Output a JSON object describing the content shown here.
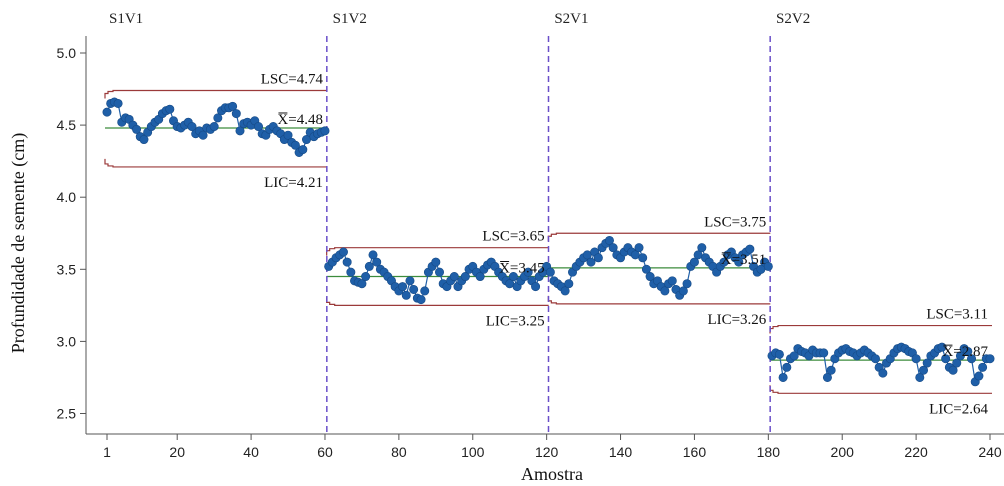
{
  "chart_data": {
    "type": "scatter",
    "xlabel": "Amostra",
    "ylabel": "Profundidade de semente (cm)",
    "xlim": [
      1,
      240
    ],
    "ylim": [
      2.35,
      5.15
    ],
    "x_ticks": [
      1,
      20,
      40,
      60,
      80,
      100,
      120,
      140,
      160,
      180,
      200,
      220,
      240
    ],
    "y_ticks": [
      2.5,
      3.0,
      3.5,
      4.0,
      4.5,
      5.0
    ],
    "y_tick_labels": [
      "2.5",
      "3.0",
      "3.5",
      "4.0",
      "4.5",
      "5.0"
    ],
    "colors": {
      "points": "#1f5fa8",
      "center_line": "#3c8c3c",
      "limits": "#9b3a3a",
      "divider": "#6a4fc9"
    },
    "stages": [
      {
        "label": "S1V1",
        "x_start": 1,
        "x_end": 60,
        "lsc": 4.74,
        "mean": 4.48,
        "lic": 4.21,
        "lsc_label": "LSC=4.74",
        "mean_label": "X=4.48",
        "lic_label": "LIC=4.21",
        "values": [
          4.59,
          4.65,
          4.66,
          4.65,
          4.52,
          4.55,
          4.54,
          4.5,
          4.47,
          4.42,
          4.4,
          4.45,
          4.49,
          4.52,
          4.54,
          4.58,
          4.6,
          4.61,
          4.53,
          4.49,
          4.48,
          4.5,
          4.52,
          4.49,
          4.44,
          4.46,
          4.43,
          4.48,
          4.47,
          4.49,
          4.55,
          4.6,
          4.62,
          4.62,
          4.63,
          4.58,
          4.46,
          4.51,
          4.52,
          4.5,
          4.53,
          4.49,
          4.44,
          4.43,
          4.47,
          4.49,
          4.46,
          4.44,
          4.4,
          4.43,
          4.38,
          4.36,
          4.31,
          4.33,
          4.4,
          4.45,
          4.42,
          4.44,
          4.45,
          4.46
        ]
      },
      {
        "label": "S1V2",
        "x_start": 61,
        "x_end": 120,
        "lsc": 3.65,
        "mean": 3.45,
        "lic": 3.25,
        "lsc_label": "LSC=3.65",
        "mean_label": "X=3.45",
        "lic_label": "LIC=3.25",
        "values": [
          3.52,
          3.55,
          3.58,
          3.6,
          3.62,
          3.55,
          3.48,
          3.42,
          3.41,
          3.4,
          3.45,
          3.52,
          3.6,
          3.55,
          3.5,
          3.48,
          3.45,
          3.42,
          3.38,
          3.35,
          3.38,
          3.32,
          3.42,
          3.36,
          3.3,
          3.29,
          3.35,
          3.48,
          3.52,
          3.55,
          3.48,
          3.4,
          3.38,
          3.42,
          3.45,
          3.38,
          3.42,
          3.45,
          3.5,
          3.52,
          3.48,
          3.45,
          3.5,
          3.53,
          3.55,
          3.52,
          3.48,
          3.45,
          3.42,
          3.4,
          3.45,
          3.38,
          3.42,
          3.45,
          3.48,
          3.42,
          3.38,
          3.45,
          3.48,
          3.52
        ]
      },
      {
        "label": "S2V1",
        "x_start": 121,
        "x_end": 180,
        "lsc": 3.75,
        "mean": 3.51,
        "lic": 3.26,
        "lsc_label": "LSC=3.75",
        "mean_label": "X=3.51",
        "lic_label": "LIC=3.26",
        "values": [
          3.48,
          3.42,
          3.4,
          3.38,
          3.35,
          3.4,
          3.48,
          3.52,
          3.55,
          3.58,
          3.6,
          3.55,
          3.62,
          3.58,
          3.65,
          3.68,
          3.7,
          3.65,
          3.6,
          3.58,
          3.62,
          3.65,
          3.62,
          3.6,
          3.65,
          3.58,
          3.5,
          3.45,
          3.4,
          3.42,
          3.38,
          3.35,
          3.4,
          3.42,
          3.36,
          3.32,
          3.35,
          3.4,
          3.52,
          3.55,
          3.6,
          3.65,
          3.58,
          3.55,
          3.52,
          3.48,
          3.52,
          3.55,
          3.6,
          3.62,
          3.58,
          3.55,
          3.6,
          3.62,
          3.64,
          3.52,
          3.48,
          3.5,
          3.55,
          3.52
        ]
      },
      {
        "label": "S2V2",
        "x_start": 181,
        "x_end": 240,
        "lsc": 3.11,
        "mean": 2.87,
        "lic": 2.64,
        "lsc_label": "LSC=3.11",
        "mean_label": "X=2.87",
        "lic_label": "LIC=2.64",
        "values": [
          2.9,
          2.92,
          2.91,
          2.75,
          2.82,
          2.88,
          2.9,
          2.95,
          2.93,
          2.92,
          2.9,
          2.94,
          2.92,
          2.92,
          2.92,
          2.75,
          2.8,
          2.88,
          2.92,
          2.94,
          2.95,
          2.93,
          2.92,
          2.9,
          2.92,
          2.94,
          2.92,
          2.9,
          2.88,
          2.82,
          2.78,
          2.85,
          2.88,
          2.92,
          2.95,
          2.96,
          2.95,
          2.93,
          2.92,
          2.88,
          2.75,
          2.8,
          2.85,
          2.9,
          2.92,
          2.95,
          2.96,
          2.88,
          2.82,
          2.8,
          2.85,
          2.9,
          2.95,
          2.93,
          2.88,
          2.72,
          2.76,
          2.82,
          2.88,
          2.88
        ]
      }
    ]
  }
}
